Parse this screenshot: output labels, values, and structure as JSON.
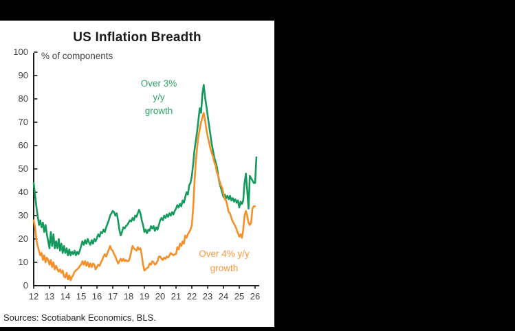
{
  "frame": {
    "background": "#000000",
    "panel_background": "#ffffff"
  },
  "chart_data": {
    "type": "line",
    "title": "US Inflation Breadth",
    "unit_label": "% of components",
    "source_note": "Sources: Scotiabank Economics, BLS.",
    "x_start": "2012-01",
    "frequency": "monthly",
    "x_tick_labels": [
      "12",
      "13",
      "14",
      "15",
      "16",
      "17",
      "18",
      "19",
      "20",
      "21",
      "22",
      "23",
      "24",
      "25",
      "26"
    ],
    "y_ticks": [
      0,
      10,
      20,
      30,
      40,
      50,
      60,
      70,
      80,
      90,
      100
    ],
    "ylim": [
      0,
      100
    ],
    "grid": false,
    "legend_position": "inline-annotations",
    "axis_color": "#1a1a1a",
    "series": [
      {
        "name": "Over 3% y/y growth",
        "color": "#149a5d",
        "label_color": "#2fa268",
        "label_lines": [
          "Over 3%",
          "y/y",
          "growth"
        ],
        "values": [
          44,
          39,
          34,
          30,
          26,
          28,
          25,
          27,
          23,
          26,
          22,
          19,
          16,
          23,
          17,
          22,
          16,
          19,
          16,
          20,
          15,
          18,
          14,
          17,
          14,
          16,
          13,
          15.5,
          13,
          14.5,
          13.5,
          15,
          13,
          14.5,
          13.5,
          15,
          17,
          19,
          17.5,
          19.5,
          18,
          20,
          18.5,
          17.5,
          19.5,
          18,
          20,
          19,
          20.5,
          22,
          21,
          23,
          22.5,
          24,
          23,
          25,
          26.5,
          28,
          30,
          31,
          32,
          31.5,
          30,
          31,
          28,
          24,
          21.5,
          23,
          25,
          24.5,
          25.5,
          26,
          27,
          28,
          27.5,
          29,
          28,
          30,
          29.5,
          31,
          32.5,
          31,
          28,
          26,
          23,
          24,
          22.5,
          24,
          23.5,
          25.5,
          24.5,
          25.5,
          23.5,
          25,
          24,
          26,
          28,
          29,
          28,
          30,
          29,
          30.5,
          29.5,
          31,
          30,
          31.5,
          30.5,
          32,
          33,
          34.5,
          33.5,
          35,
          34,
          36.5,
          35.5,
          38,
          40,
          39,
          43,
          44,
          47,
          52,
          58,
          62,
          66,
          71,
          76,
          74,
          82,
          86,
          81,
          77,
          73,
          69,
          65,
          61,
          58,
          55,
          53,
          51,
          47,
          44,
          42,
          40,
          38,
          39,
          37.5,
          38.5,
          37,
          38.5,
          36.5,
          37.5,
          36,
          37,
          35.5,
          36.5,
          33.5,
          36,
          35,
          36.5,
          44,
          48,
          41,
          33,
          47,
          46,
          45,
          44,
          44,
          55
        ]
      },
      {
        "name": "Over 4% y/y growth",
        "color": "#f78f28",
        "label_color": "#f89a3e",
        "label_lines": [
          "Over 4% y/y",
          "growth"
        ],
        "values": [
          28,
          25,
          20,
          17,
          15,
          13,
          14,
          11,
          13,
          10,
          12,
          11,
          9,
          11,
          8,
          10,
          7,
          8.5,
          7,
          6,
          7,
          5.5,
          6.5,
          4,
          3.5,
          5.5,
          2.7,
          4.5,
          2.3,
          3.7,
          4.5,
          6,
          6.5,
          7,
          7.5,
          8.5,
          9,
          10.5,
          9,
          10.5,
          8.5,
          10,
          8,
          9.5,
          8,
          9.5,
          9,
          7,
          8,
          9,
          8.5,
          10,
          11,
          12.5,
          13.5,
          12.5,
          14,
          15.5,
          17,
          15.5,
          15,
          13.5,
          12.5,
          11,
          9.5,
          10.5,
          11.5,
          10.5,
          11.5,
          10.5,
          11,
          10.5,
          10.5,
          12,
          14.5,
          17,
          16,
          15.5,
          15,
          16.5,
          15.5,
          16,
          13,
          9,
          6.5,
          7,
          7.5,
          8,
          9.5,
          9,
          10.5,
          10,
          9,
          9.5,
          10.5,
          12.5,
          12.5,
          11.5,
          11,
          12,
          11.5,
          12.5,
          12,
          13,
          14,
          13.5,
          13,
          13.5,
          13.5,
          16.5,
          15.5,
          18,
          17,
          19,
          18,
          21.5,
          20.5,
          22,
          23,
          24,
          26,
          33,
          44,
          53,
          59,
          64,
          67,
          70,
          72,
          74,
          71,
          67,
          64,
          61.5,
          59,
          57,
          55.5,
          53,
          51.5,
          48.5,
          47,
          45,
          43,
          42,
          39.5,
          37,
          36.5,
          34,
          31.5,
          31,
          29,
          27.5,
          26.5,
          25.5,
          24,
          22.5,
          21,
          22,
          20.5,
          24,
          30,
          32,
          30,
          27,
          26,
          27,
          33,
          34,
          34
        ]
      }
    ]
  }
}
